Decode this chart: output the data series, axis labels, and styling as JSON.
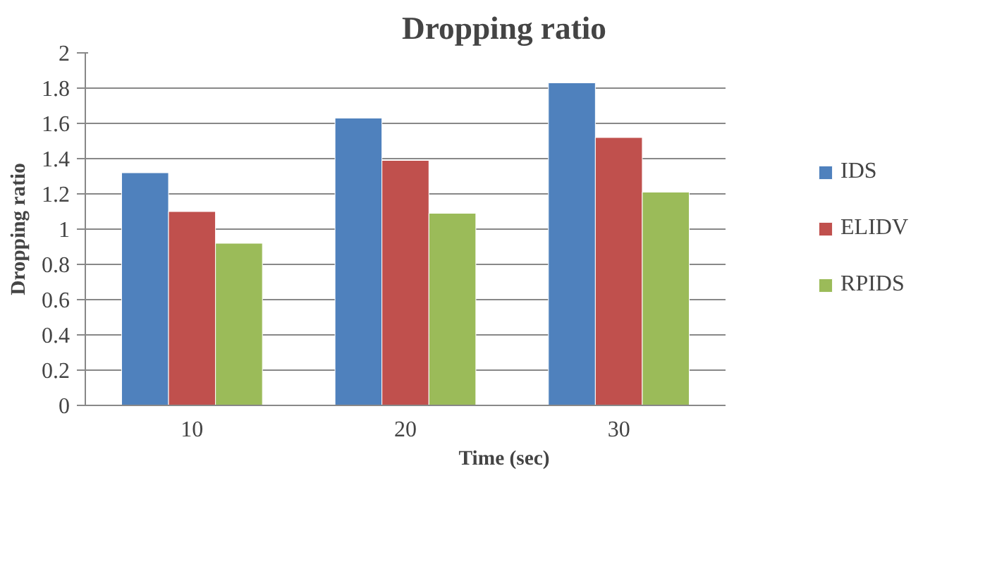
{
  "chart_data": {
    "type": "bar",
    "title": "Dropping ratio",
    "xlabel": "Time (sec)",
    "ylabel": "Dropping ratio",
    "categories": [
      "10",
      "20",
      "30"
    ],
    "series": [
      {
        "name": "IDS",
        "color": "#4f81bd",
        "values": [
          1.32,
          1.63,
          1.83
        ]
      },
      {
        "name": "ELIDV",
        "color": "#c0504d",
        "values": [
          1.1,
          1.39,
          1.52
        ]
      },
      {
        "name": "RPIDS",
        "color": "#9bbb59",
        "values": [
          0.92,
          1.09,
          1.21
        ]
      }
    ],
    "ylim": [
      0,
      2
    ],
    "yticks": [
      0,
      0.2,
      0.4,
      0.6,
      0.8,
      1,
      1.2,
      1.4,
      1.6,
      1.8,
      2
    ],
    "grid": "y",
    "legend": "right"
  }
}
